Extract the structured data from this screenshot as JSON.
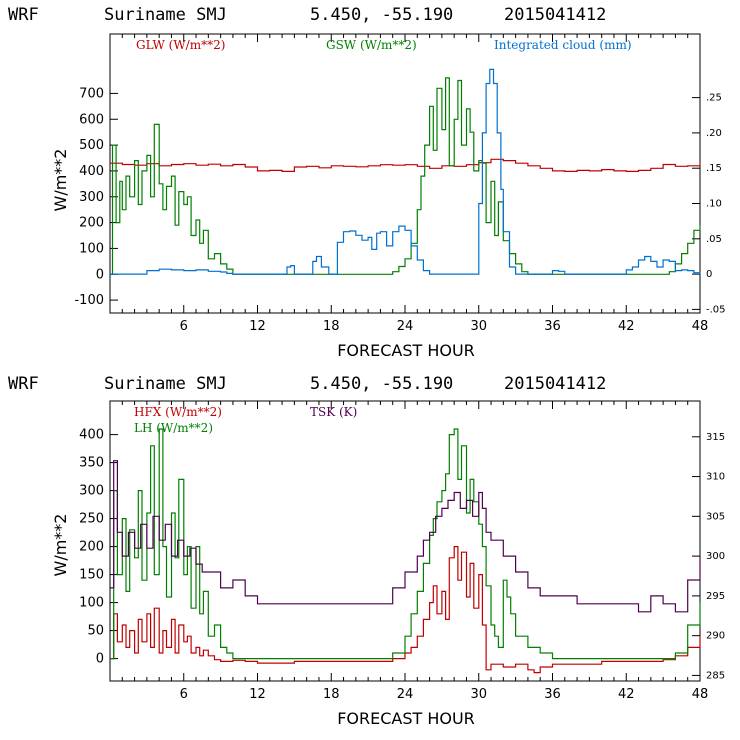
{
  "chart_data": [
    {
      "type": "line",
      "header": {
        "model": "WRF",
        "location": "Suriname SMJ",
        "coords": "5.450, -55.190",
        "init": "2015041412"
      },
      "xlabel": "FORECAST HOUR",
      "ylabel": "W/m**2",
      "xlim": [
        0,
        48
      ],
      "xticks": [
        6,
        12,
        18,
        24,
        30,
        36,
        42,
        48
      ],
      "ylim": [
        -150,
        930
      ],
      "yticks": [
        -100,
        0,
        100,
        200,
        300,
        400,
        500,
        600,
        700
      ],
      "y2lim": [
        -0.0551,
        0.3401
      ],
      "y2ticks": [
        -0.05,
        0,
        0.05,
        0.1,
        0.15,
        0.2,
        0.25
      ],
      "y2ticklabels": [
        "-.05",
        "0",
        ".05",
        ".10",
        ".15",
        ".20",
        ".25"
      ],
      "colors": {
        "GLW": "#c00000",
        "GSW": "#008000",
        "cloud": "#0070d0"
      },
      "series": [
        {
          "name": "GLW (W/m**2)",
          "key": "GLW",
          "axis": "left",
          "x": [
            0,
            1,
            2,
            3,
            4,
            5,
            6,
            7,
            8,
            9,
            10,
            11,
            12,
            13,
            14,
            15,
            16,
            17,
            18,
            19,
            20,
            21,
            22,
            23,
            24,
            25,
            26,
            27,
            28,
            29,
            30,
            31,
            32,
            33,
            34,
            35,
            36,
            37,
            38,
            39,
            40,
            41,
            42,
            43,
            44,
            45,
            46,
            47,
            48
          ],
          "values": [
            430,
            425,
            422,
            428,
            420,
            425,
            428,
            422,
            426,
            420,
            425,
            415,
            400,
            402,
            398,
            415,
            418,
            412,
            420,
            418,
            416,
            420,
            424,
            422,
            424,
            418,
            410,
            420,
            418,
            424,
            432,
            445,
            440,
            430,
            420,
            410,
            400,
            398,
            402,
            400,
            405,
            400,
            398,
            402,
            410,
            425,
            418,
            420,
            432
          ]
        },
        {
          "name": "GSW (W/m**2)",
          "key": "GSW",
          "axis": "left",
          "x": [
            0,
            0.2,
            0.5,
            0.8,
            1,
            1.3,
            1.6,
            2,
            2.3,
            2.6,
            3,
            3.3,
            3.6,
            4,
            4.3,
            4.6,
            5,
            5.3,
            5.6,
            6,
            6.3,
            6.6,
            7,
            7.3,
            7.6,
            8,
            8.5,
            9,
            9.5,
            10,
            15,
            20,
            22,
            23,
            23.5,
            24,
            24.5,
            25,
            25.3,
            25.6,
            26,
            26.3,
            26.6,
            27,
            27.3,
            27.6,
            28,
            28.3,
            28.6,
            29,
            29.3,
            29.6,
            30,
            30.3,
            30.6,
            31,
            31.3,
            31.6,
            32,
            32.5,
            33,
            33.5,
            34,
            34.5,
            35,
            40,
            44,
            45,
            45.5,
            46,
            46.5,
            47,
            47.5,
            48
          ],
          "values": [
            0,
            500,
            200,
            360,
            250,
            380,
            300,
            440,
            270,
            400,
            460,
            300,
            580,
            350,
            250,
            340,
            380,
            190,
            320,
            270,
            300,
            150,
            210,
            120,
            170,
            60,
            80,
            40,
            20,
            0,
            0,
            0,
            0,
            10,
            30,
            60,
            120,
            250,
            380,
            500,
            650,
            480,
            720,
            560,
            760,
            420,
            600,
            750,
            500,
            640,
            550,
            400,
            440,
            430,
            200,
            360,
            150,
            280,
            130,
            80,
            40,
            10,
            0,
            0,
            0,
            0,
            0,
            0,
            10,
            40,
            80,
            120,
            170,
            190
          ]
        },
        {
          "name": "Integrated cloud (mm)",
          "key": "cloud",
          "axis": "right",
          "x": [
            0,
            2,
            3,
            4,
            5,
            6,
            7,
            8,
            9,
            9.5,
            10,
            14,
            14.4,
            14.7,
            15,
            16,
            16.5,
            16.8,
            17.2,
            17.8,
            18.5,
            19,
            19.5,
            20,
            20.5,
            21,
            21.3,
            21.7,
            22,
            22.5,
            23,
            23.5,
            24,
            24.5,
            25,
            25.5,
            26,
            29.7,
            30,
            30.3,
            30.6,
            30.9,
            31.2,
            31.5,
            31.8,
            32,
            32.5,
            33,
            35,
            36,
            36.5,
            37,
            40,
            41.5,
            42,
            42.5,
            43,
            43.5,
            44,
            44.5,
            45,
            45.5,
            46,
            46.5,
            47,
            47.5,
            48
          ],
          "values": [
            0,
            0,
            0.005,
            0.007,
            0.006,
            0.005,
            0.006,
            0.004,
            0.003,
            0.001,
            0,
            0,
            0.01,
            0.012,
            0,
            0,
            0.018,
            0.025,
            0.01,
            0,
            0.045,
            0.06,
            0.061,
            0.055,
            0.048,
            0.052,
            0.035,
            0.058,
            0.06,
            0.04,
            0.06,
            0.068,
            0.062,
            0.04,
            0.02,
            0.005,
            0,
            0,
            0.1,
            0.2,
            0.27,
            0.29,
            0.27,
            0.2,
            0.12,
            0.06,
            0.01,
            0,
            0,
            0.005,
            0.004,
            0,
            0,
            0,
            0.006,
            0.01,
            0.02,
            0.025,
            0.018,
            0.01,
            0.02,
            0.018,
            0.005,
            0.006,
            0.005,
            0.002,
            0
          ]
        }
      ]
    },
    {
      "type": "line",
      "header": {
        "model": "WRF",
        "location": "Suriname SMJ",
        "coords": "5.450, -55.190",
        "init": "2015041412"
      },
      "xlabel": "FORECAST HOUR",
      "ylabel": "W/m**2",
      "xlim": [
        0,
        48
      ],
      "xticks": [
        6,
        12,
        18,
        24,
        30,
        36,
        42,
        48
      ],
      "ylim": [
        -40,
        460
      ],
      "yticks": [
        0,
        50,
        100,
        150,
        200,
        250,
        300,
        350,
        400
      ],
      "y2lim": [
        284.3,
        319.5
      ],
      "y2ticks": [
        285,
        290,
        295,
        300,
        305,
        310,
        315
      ],
      "y2ticklabels": [
        "285",
        "290",
        "295",
        "300",
        "305",
        "310",
        "315"
      ],
      "colors": {
        "HFX": "#c00000",
        "LH": "#008000",
        "TSK": "#500050"
      },
      "series": [
        {
          "name": "HFX (W/m**2)",
          "key": "HFX",
          "axis": "left",
          "x": [
            0,
            0.3,
            0.6,
            1,
            1.3,
            1.6,
            2,
            2.3,
            2.6,
            3,
            3.3,
            3.6,
            4,
            4.3,
            4.6,
            5,
            5.3,
            5.6,
            6,
            6.3,
            6.6,
            7,
            7.3,
            7.6,
            8,
            8.5,
            9,
            10,
            11,
            12,
            15,
            18,
            21,
            23,
            24,
            24.5,
            25,
            25.5,
            26,
            26.3,
            26.6,
            27,
            27.3,
            27.6,
            28,
            28.3,
            28.6,
            29,
            29.3,
            29.6,
            30,
            30.3,
            30.6,
            31,
            32,
            33,
            34,
            34.5,
            35,
            36,
            40,
            45,
            46,
            47,
            48
          ],
          "values": [
            0,
            80,
            30,
            60,
            20,
            50,
            10,
            70,
            30,
            80,
            20,
            90,
            10,
            50,
            20,
            70,
            10,
            60,
            30,
            40,
            10,
            20,
            5,
            15,
            5,
            -2,
            -5,
            -3,
            -5,
            -8,
            -5,
            -5,
            -5,
            0,
            10,
            20,
            40,
            70,
            100,
            130,
            80,
            120,
            70,
            180,
            200,
            140,
            190,
            110,
            170,
            90,
            150,
            60,
            -20,
            -10,
            -15,
            -10,
            -20,
            -25,
            -15,
            -10,
            -5,
            -2,
            5,
            20,
            40
          ]
        },
        {
          "name": "LH  (W/m**2)",
          "key": "LH",
          "axis": "left",
          "x": [
            0,
            0.3,
            0.6,
            1,
            1.3,
            1.6,
            2,
            2.3,
            2.6,
            3,
            3.3,
            3.6,
            4,
            4.3,
            4.6,
            5,
            5.3,
            5.6,
            6,
            6.3,
            6.6,
            7,
            7.3,
            7.6,
            8,
            8.5,
            9,
            9.5,
            10,
            12,
            15,
            18,
            21,
            23,
            24,
            24.5,
            25,
            25.5,
            26,
            26.3,
            26.6,
            27,
            27.3,
            27.6,
            28,
            28.3,
            28.6,
            29,
            29.3,
            29.6,
            30,
            30.3,
            30.6,
            31,
            31.3,
            31.6,
            32,
            32.3,
            32.6,
            33,
            34,
            35,
            36,
            40,
            44,
            45,
            46,
            47,
            48
          ],
          "values": [
            0,
            300,
            150,
            250,
            120,
            230,
            180,
            300,
            140,
            260,
            380,
            150,
            410,
            200,
            110,
            260,
            180,
            320,
            150,
            200,
            90,
            200,
            80,
            120,
            40,
            60,
            20,
            10,
            0,
            0,
            0,
            0,
            0,
            10,
            40,
            80,
            120,
            170,
            220,
            250,
            280,
            300,
            330,
            400,
            410,
            320,
            380,
            260,
            320,
            280,
            240,
            200,
            130,
            60,
            40,
            20,
            140,
            110,
            80,
            40,
            20,
            10,
            0,
            0,
            0,
            0,
            10,
            60,
            100
          ]
        },
        {
          "name": "TSK (K)",
          "key": "TSK",
          "axis": "right",
          "x": [
            0,
            0.3,
            0.6,
            1,
            1.5,
            2,
            2.5,
            3,
            3.5,
            4,
            4.5,
            5,
            5.5,
            6,
            6.5,
            7,
            7.5,
            8,
            9,
            10,
            11,
            12,
            15,
            18,
            21,
            22,
            23,
            24,
            25,
            25.5,
            26,
            26.5,
            27,
            27.5,
            28,
            28.5,
            29,
            29.5,
            30,
            30.3,
            30.6,
            31,
            32,
            33,
            34,
            35,
            36,
            38,
            40,
            42,
            43,
            44,
            45,
            46,
            47,
            48
          ],
          "values": [
            296,
            312,
            303,
            300,
            303,
            301,
            304,
            301,
            305,
            302,
            304,
            300,
            302,
            300,
            301,
            299,
            298,
            298,
            296,
            297,
            295,
            294,
            294,
            294,
            294,
            294,
            296,
            298,
            300,
            302,
            303,
            305,
            306,
            307,
            308,
            306,
            307,
            305,
            308,
            306,
            303,
            302,
            300,
            298,
            296,
            295,
            295,
            294,
            294,
            294,
            293,
            295,
            294,
            293,
            297,
            300
          ]
        }
      ]
    }
  ],
  "legends": [
    {
      "glw": "GLW (W/m**2)",
      "gsw": "GSW (W/m**2)",
      "cloud": "Integrated cloud (mm)"
    },
    {
      "hfx": "HFX (W/m**2)",
      "lh": "LH  (W/m**2)",
      "tsk": "TSK (K)"
    }
  ]
}
